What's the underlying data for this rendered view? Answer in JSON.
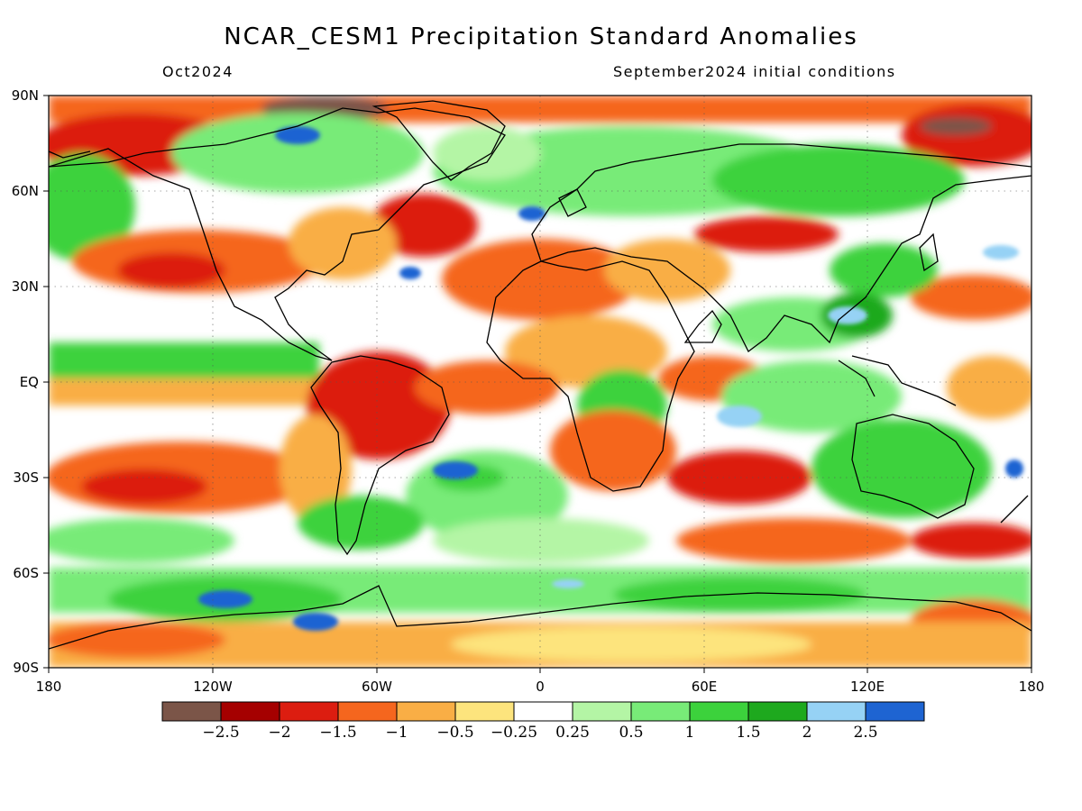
{
  "title": "NCAR_CESM1 Precipitation Standard Anomalies",
  "valid_month": "Oct2024",
  "initial_conditions": "September2024 initial conditions",
  "map": {
    "projection": "equirectangular",
    "lat_labels": [
      "90N",
      "60N",
      "30N",
      "EQ",
      "30S",
      "60S",
      "90S"
    ],
    "lon_labels": [
      "180",
      "120W",
      "60W",
      "0",
      "60E",
      "120E",
      "180"
    ]
  },
  "colorbar": {
    "colors": [
      "#7b5548",
      "#a50000",
      "#dc1d10",
      "#f5661e",
      "#f9ae45",
      "#fde47d",
      "#ffffff",
      "#b4f5a5",
      "#78eb78",
      "#3cd23c",
      "#1ea91e",
      "#96d2f5",
      "#1e64d2"
    ],
    "labels": [
      "−2.5",
      "−2",
      "−1.5",
      "−1",
      "−0.5",
      "−0.25",
      "0.25",
      "0.5",
      "1",
      "1.5",
      "2",
      "2.5"
    ]
  }
}
